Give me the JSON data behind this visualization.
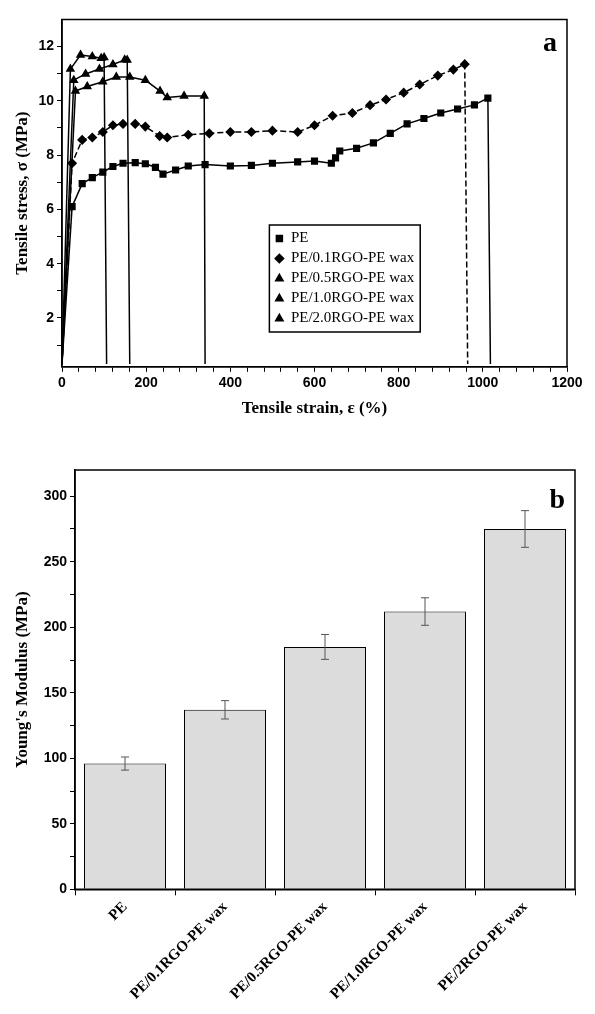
{
  "chart_data": [
    {
      "type": "line",
      "title": "a",
      "xlabel": "Tensile strain, ε (%)",
      "ylabel": "Tensile stress, σ (MPa)",
      "xlim": [
        0,
        1200
      ],
      "xticks": [
        0,
        {
          "value": 40,
          "label": null
        },
        {
          "value": 80,
          "label": null
        },
        {
          "value": 120,
          "label": null
        },
        {
          "value": 160,
          "label": null
        },
        200,
        {
          "value": 240,
          "label": null
        },
        {
          "value": 280,
          "label": null
        },
        {
          "value": 320,
          "label": null
        },
        {
          "value": 360,
          "label": null
        },
        400,
        {
          "value": 440,
          "label": null
        },
        {
          "value": 480,
          "label": null
        },
        {
          "value": 520,
          "label": null
        },
        {
          "value": 560,
          "label": null
        },
        600,
        {
          "value": 640,
          "label": null
        },
        {
          "value": 680,
          "label": null
        },
        {
          "value": 720,
          "label": null
        },
        {
          "value": 760,
          "label": null
        },
        800,
        {
          "value": 840,
          "label": null
        },
        {
          "value": 880,
          "label": null
        },
        {
          "value": 920,
          "label": null
        },
        {
          "value": 960,
          "label": null
        },
        1000,
        {
          "value": 1040,
          "label": null
        },
        {
          "value": 1080,
          "label": null
        },
        {
          "value": 1120,
          "label": null
        },
        {
          "value": 1160,
          "label": null
        },
        1200
      ],
      "ylim": [
        0.2,
        13
      ],
      "yticks": [
        {
          "value": 1,
          "label": null
        },
        2,
        {
          "value": 3,
          "label": null
        },
        4,
        {
          "value": 5,
          "label": null
        },
        6,
        {
          "value": 7,
          "label": null
        },
        8,
        {
          "value": 9,
          "label": null
        },
        10,
        {
          "value": 11,
          "label": null
        },
        12
      ],
      "legend": "bottom",
      "grid": false,
      "series": [
        {
          "name": "PE",
          "color": "#000000",
          "marker": "square",
          "line_style": "solid",
          "x": [
            0,
            24,
            48,
            72,
            97,
            121,
            145,
            174,
            198,
            222,
            240,
            270,
            300,
            340,
            400,
            450,
            500,
            560,
            600,
            640,
            650,
            660,
            700,
            740,
            780,
            820,
            860,
            900,
            940,
            980,
            1012,
            1018
          ],
          "values": [
            0.3,
            6.1,
            6.95,
            7.17,
            7.37,
            7.58,
            7.7,
            7.72,
            7.68,
            7.55,
            7.3,
            7.45,
            7.6,
            7.65,
            7.6,
            7.62,
            7.7,
            7.75,
            7.78,
            7.7,
            7.9,
            8.15,
            8.25,
            8.45,
            8.8,
            9.15,
            9.35,
            9.55,
            9.7,
            9.85,
            10.1,
            0.3
          ]
        },
        {
          "name": "PE/0.1RGO-PE wax",
          "color": "#000000",
          "marker": "diamond",
          "line_style": "dashed",
          "x": [
            0,
            24,
            48,
            72,
            97,
            121,
            145,
            174,
            198,
            232,
            250,
            300,
            350,
            400,
            450,
            500,
            560,
            600,
            643,
            690,
            732,
            770,
            812,
            850,
            893,
            930,
            957,
            964
          ],
          "values": [
            0.3,
            7.7,
            8.56,
            8.65,
            8.85,
            9.1,
            9.15,
            9.15,
            9.05,
            8.7,
            8.65,
            8.75,
            8.8,
            8.85,
            8.85,
            8.9,
            8.85,
            9.1,
            9.45,
            9.55,
            9.84,
            10.05,
            10.3,
            10.6,
            10.93,
            11.15,
            11.35,
            0.3
          ]
        },
        {
          "name": "PE/0.5RGO-PE wax",
          "color": "#000000",
          "marker": "triangle",
          "line_style": "solid",
          "x": [
            0,
            32,
            60,
            97,
            129,
            161,
            198,
            233,
            250,
            290,
            338,
            340
          ],
          "values": [
            0.3,
            10.36,
            10.53,
            10.7,
            10.88,
            10.88,
            10.76,
            10.36,
            10.12,
            10.18,
            10.18,
            0.3
          ]
        },
        {
          "name": "PE/1.0RGO-PE wax",
          "color": "#000000",
          "marker": "triangle",
          "line_style": "solid",
          "x": [
            0,
            28,
            56,
            89,
            121,
            149,
            155,
            161
          ],
          "values": [
            0.3,
            10.76,
            10.99,
            11.17,
            11.34,
            11.51,
            11.5,
            0.3
          ]
        },
        {
          "name": "PE/2.0RGO-PE wax",
          "color": "#000000",
          "marker": "triangle",
          "line_style": "solid",
          "x": [
            0,
            20,
            44,
            72,
            93,
            100,
            106
          ],
          "values": [
            0.3,
            11.17,
            11.69,
            11.63,
            11.57,
            11.6,
            0.3
          ]
        }
      ]
    },
    {
      "type": "bar",
      "title": "b",
      "ylabel": "Young's Modulus (MPa)",
      "categories": [
        "PE",
        "PE/0.1RGO-PE wax",
        "PE/0.5RGO-PE wax",
        "PE/1.0RGO-PE wax",
        "PE/2RGO-PE wax"
      ],
      "values": [
        96,
        137,
        185,
        212,
        275
      ],
      "errors": [
        5,
        7,
        9.5,
        10.5,
        14
      ],
      "color": "#dcdcdc",
      "grid": false,
      "ylim": [
        0,
        320
      ],
      "yticks": [
        0,
        {
          "value": 25,
          "label": null
        },
        50,
        {
          "value": 75,
          "label": null
        },
        100,
        {
          "value": 125,
          "label": null
        },
        150,
        {
          "value": 175,
          "label": null
        },
        200,
        {
          "value": 225,
          "label": null
        },
        250,
        {
          "value": 275,
          "label": null
        },
        300
      ]
    }
  ]
}
